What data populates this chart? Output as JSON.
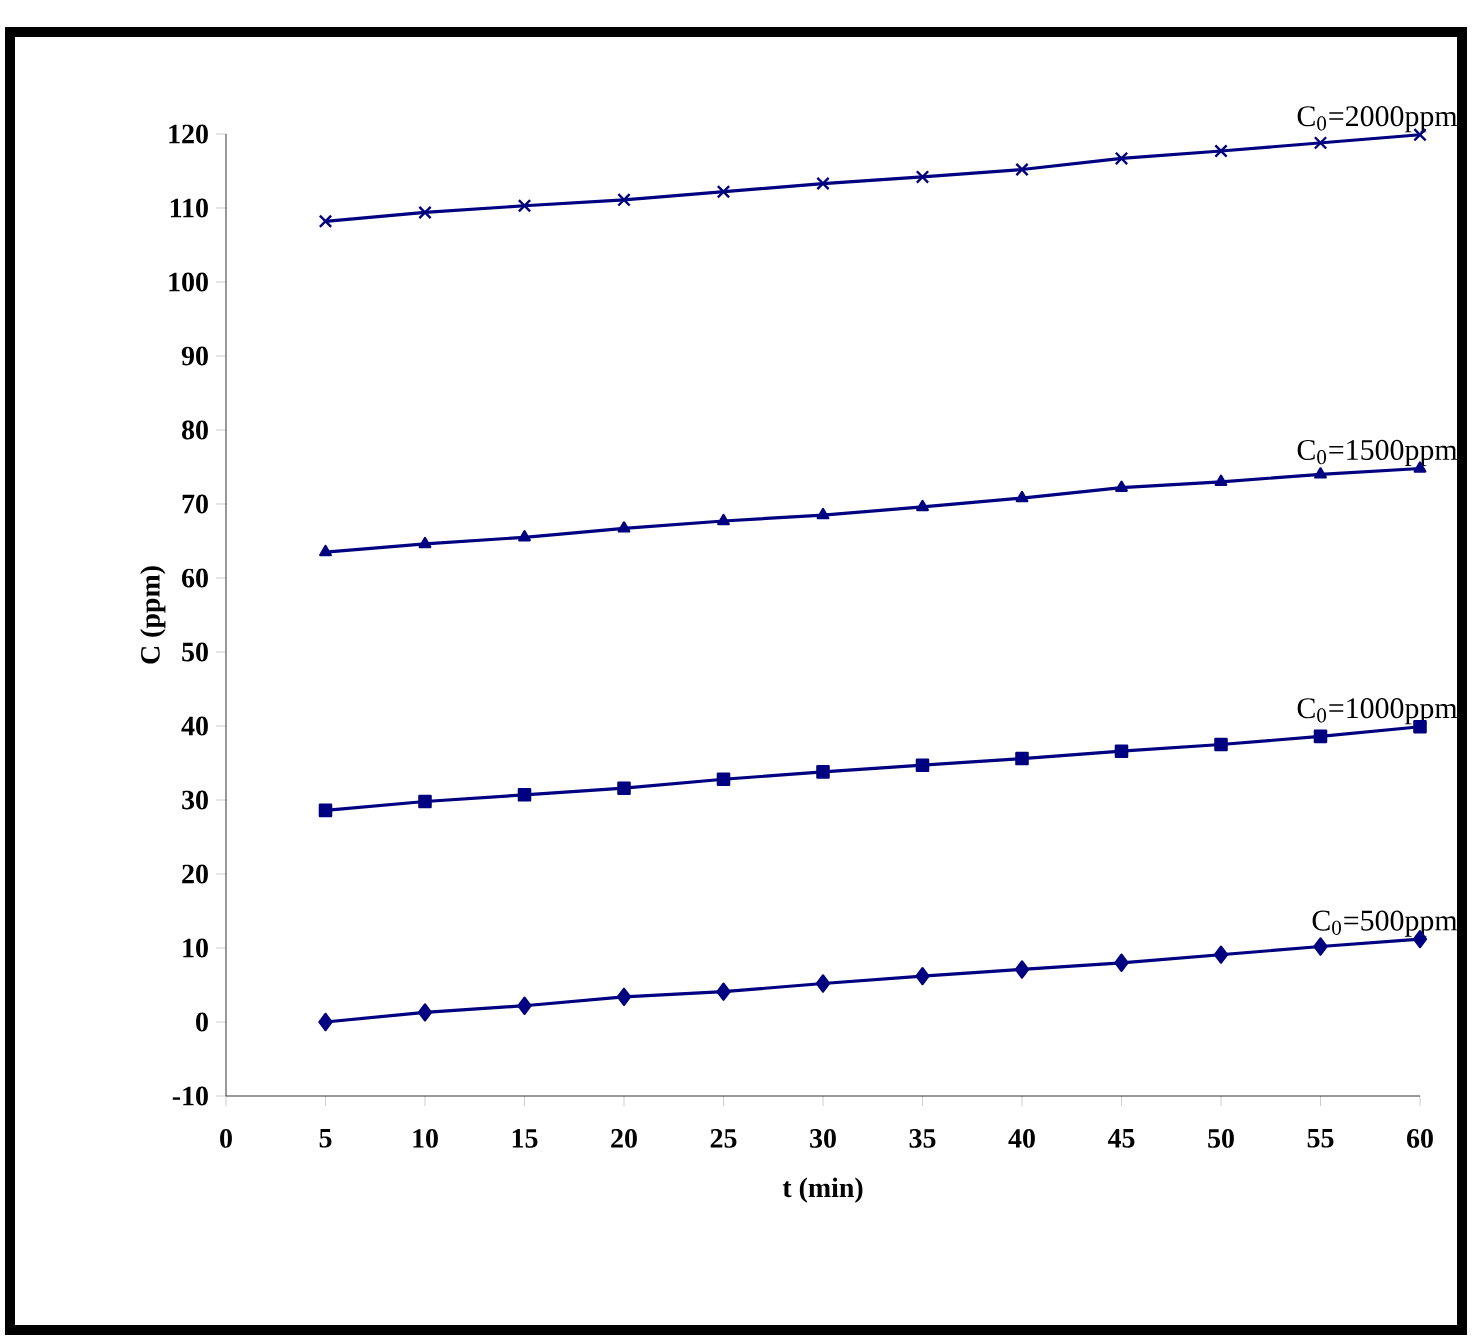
{
  "chart_data": {
    "type": "line",
    "x": [
      5,
      10,
      15,
      20,
      25,
      30,
      35,
      40,
      45,
      50,
      55,
      60
    ],
    "series": [
      {
        "name": "C$_{0}$=2000ppm",
        "color": "#000080",
        "marker": "cross",
        "values": [
          108.2,
          109.4,
          110.3,
          111.1,
          112.2,
          113.3,
          114.2,
          115.2,
          116.7,
          117.7,
          118.8,
          119.9
        ]
      },
      {
        "name": "C$_{0}$=1500ppm",
        "color": "#000080",
        "marker": "triangle",
        "values": [
          63.5,
          64.6,
          65.5,
          66.7,
          67.7,
          68.5,
          69.6,
          70.8,
          72.2,
          73.0,
          74.0,
          74.8
        ]
      },
      {
        "name": "C$_{0}$=1000ppm",
        "color": "#000080",
        "marker": "square",
        "values": [
          28.6,
          29.8,
          30.7,
          31.6,
          32.8,
          33.8,
          34.7,
          35.6,
          36.6,
          37.5,
          38.6,
          39.9
        ]
      },
      {
        "name": "C$_{0}$=500ppm",
        "color": "#000080",
        "marker": "diamond",
        "values": [
          0,
          1.3,
          2.2,
          3.4,
          4.1,
          5.2,
          6.2,
          7.1,
          8.0,
          9.1,
          10.2,
          11.2
        ]
      }
    ],
    "xlabel": "t  (min)",
    "ylabel": "C   (ppm)",
    "xlim": [
      0,
      60
    ],
    "ylim": [
      -10,
      120
    ],
    "xticks": [
      0,
      5,
      10,
      15,
      20,
      25,
      30,
      35,
      40,
      45,
      50,
      55,
      60
    ],
    "yticks": [
      -10,
      0,
      10,
      20,
      30,
      40,
      50,
      60,
      70,
      80,
      90,
      100,
      110,
      120
    ],
    "line_style": "solid"
  }
}
